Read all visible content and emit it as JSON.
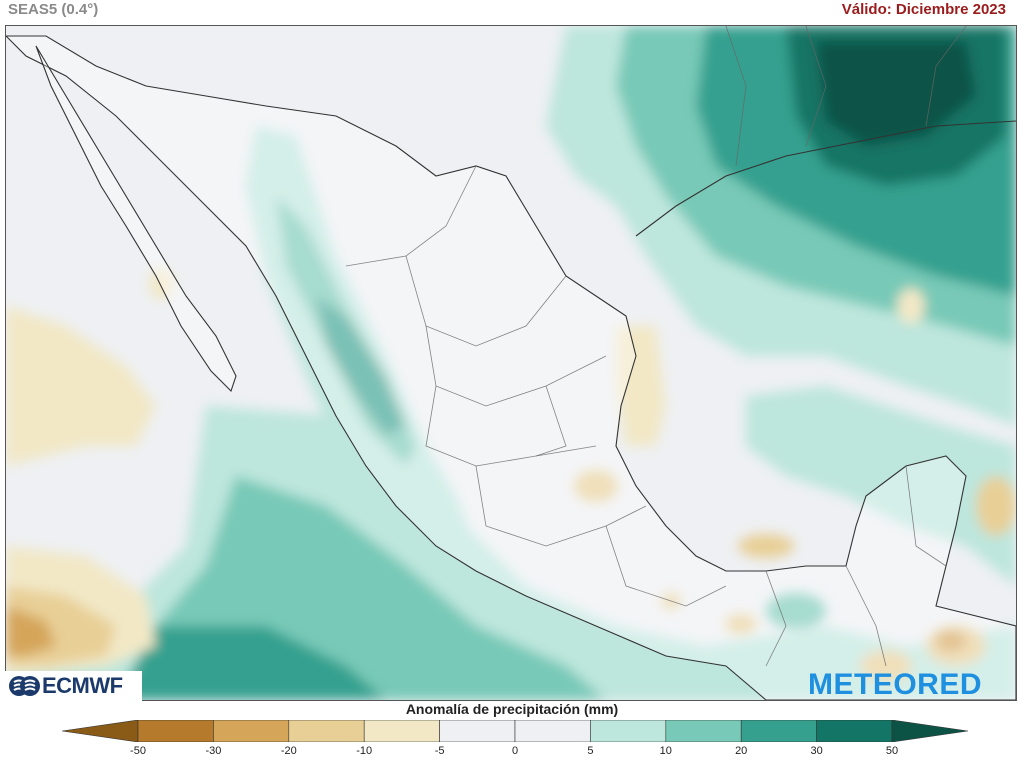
{
  "header": {
    "model": "SEAS5 (0.4°)",
    "valid": "Válido: Diciembre 2023"
  },
  "logos": {
    "ecmwf": "ECMWF",
    "meteored": "METEORED"
  },
  "legend": {
    "title": "Anomalía de precipitación (mm)",
    "ticks": [
      "-50",
      "-30",
      "-20",
      "-10",
      "-5",
      "0",
      "5",
      "10",
      "20",
      "30",
      "50"
    ],
    "colors": [
      "#8a5a17",
      "#b57a2b",
      "#d5a55a",
      "#e8cf96",
      "#f2e8c6",
      "#eef0f3",
      "#eef0f3",
      "#bde6dd",
      "#78c9b7",
      "#36a08f",
      "#137565",
      "#0c5346"
    ]
  },
  "map": {
    "region": "México y Centroamérica",
    "ocean_color": "#eef0f3",
    "land_color": "#f4f4f4"
  }
}
